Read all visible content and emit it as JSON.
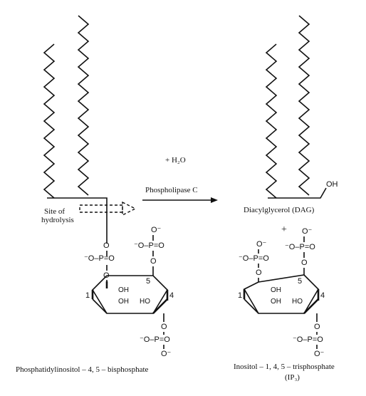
{
  "reactant": {
    "name": "Phosphatidylinositol – 4, 5 – bisphosphate",
    "site_label_line1": "Site of",
    "site_label_line2": "hydrolysis"
  },
  "reaction": {
    "water": "+ H₂O",
    "enzyme": "Phospholipase C"
  },
  "products": {
    "dag_name": "Diacylglycerol (DAG)",
    "hydroxyl": "OH",
    "plus": "+",
    "ip3_name_line1": "Inositol – 1, 4, 5 – trisphosphate",
    "ip3_name_line2": "(IP₃)"
  },
  "ring_labels": {
    "oh": "OH",
    "ho": "HO",
    "pos1": "1",
    "pos4": "4",
    "pos5": "5"
  },
  "phosphate": {
    "o_minus": "O⁻",
    "p_eq_o": "P=O",
    "o": "O",
    "minus_o": "⁻O",
    "minus_op": "⁻O–P=O"
  }
}
